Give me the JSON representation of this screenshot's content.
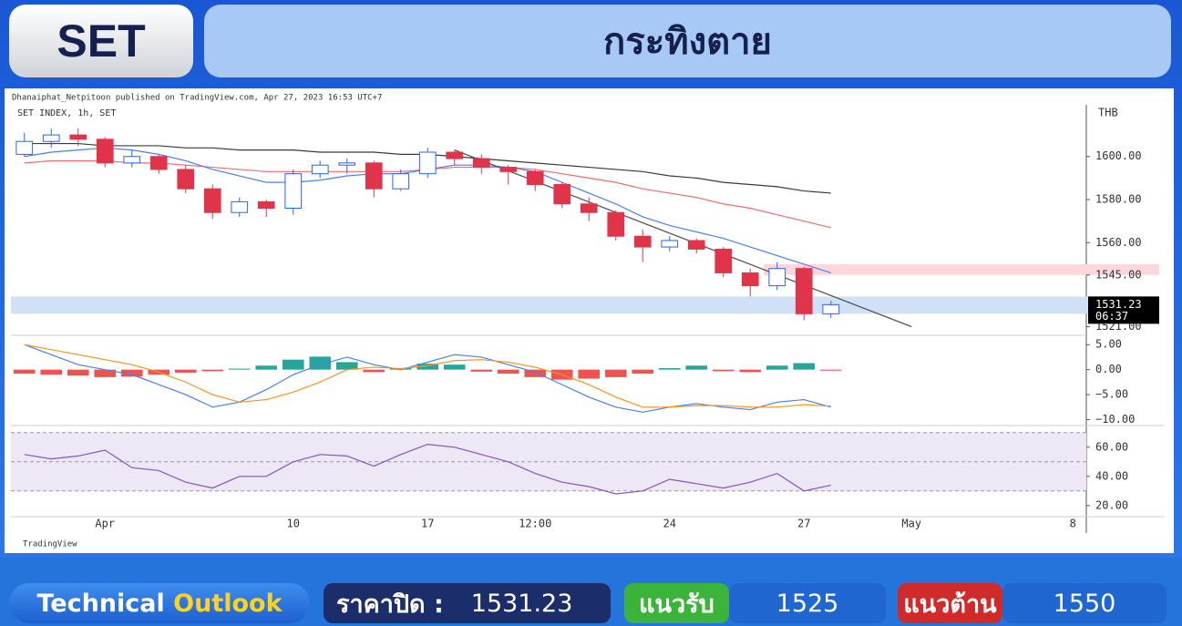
{
  "header": {
    "badge": "SET",
    "title": "กระทิงตาย"
  },
  "source": "Dhanaiphat_Netpitoon published on TradingView.com, Apr 27, 2023 16:53 UTC+7",
  "brand": "TradingView",
  "chart_data": [
    {
      "type": "candlestick",
      "title": "SET INDEX, 1h, SET",
      "currency": "THB",
      "categories": [
        null,
        null,
        null,
        "Apr",
        null,
        null,
        null,
        null,
        null,
        null,
        "10",
        null,
        null,
        null,
        null,
        "17",
        null,
        null,
        null,
        "12:00",
        null,
        null,
        null,
        null,
        "24",
        null,
        null,
        null,
        null,
        "27",
        null,
        null,
        null,
        "May",
        null,
        null,
        null,
        null,
        null,
        "8"
      ],
      "open": [
        1601,
        1607,
        1610,
        1608,
        1597,
        1600,
        1594,
        1585,
        1574,
        1579,
        1576,
        1592,
        1596,
        1597,
        1585,
        1592,
        1602,
        1599,
        1595,
        1593,
        1587,
        1578,
        1574,
        1563,
        1558,
        1561,
        1557,
        1546,
        1540,
        1548,
        1527,
        null,
        null,
        null,
        null,
        null,
        null,
        null,
        null,
        null
      ],
      "high": [
        1611,
        1613,
        1613,
        1609,
        1603,
        1601,
        1596,
        1587,
        1581,
        1580,
        1594,
        1598,
        1599,
        1598,
        1594,
        1604,
        1603,
        1601,
        1596,
        1594,
        1588,
        1581,
        1575,
        1566,
        1563,
        1562,
        1558,
        1548,
        1551,
        1549,
        1533,
        null,
        null,
        null,
        null,
        null,
        null,
        null,
        null,
        null
      ],
      "low": [
        1600,
        1604,
        1605,
        1595,
        1595,
        1592,
        1583,
        1571,
        1572,
        1572,
        1573,
        1590,
        1592,
        1581,
        1584,
        1590,
        1596,
        1592,
        1587,
        1584,
        1576,
        1570,
        1561,
        1551,
        1556,
        1555,
        1544,
        1535,
        1538,
        1524,
        1525,
        null,
        null,
        null,
        null,
        null,
        null,
        null,
        null,
        null
      ],
      "close": [
        1607,
        1610,
        1608,
        1597,
        1600,
        1594,
        1585,
        1574,
        1579,
        1576,
        1592,
        1596,
        1597,
        1585,
        1592,
        1602,
        1599,
        1595,
        1593,
        1587,
        1578,
        1574,
        1563,
        1558,
        1561,
        1557,
        1546,
        1540,
        1548,
        1527,
        1531.23,
        null,
        null,
        null,
        null,
        null,
        null,
        null,
        null,
        null
      ],
      "up_color": "#2962ff",
      "down_color": "#e0344a",
      "series": [
        {
          "color": "#3a3a3a",
          "values": [
            1606,
            1606,
            1606,
            1605,
            1605,
            1605,
            1604,
            1604,
            1603,
            1603,
            1603,
            1602,
            1602,
            1602,
            1601,
            1601,
            1600,
            1599,
            1598,
            1597,
            1596,
            1595,
            1594,
            1593,
            1591,
            1590,
            1588,
            1587,
            1586,
            1584,
            1583,
            null,
            null,
            null,
            null,
            null,
            null,
            null,
            null,
            null
          ]
        },
        {
          "color": "#f26b6b",
          "values": [
            1597,
            1598,
            1598,
            1598,
            1597,
            1597,
            1596,
            1595,
            1594,
            1593,
            1593,
            1593,
            1593,
            1593,
            1593,
            1594,
            1595,
            1595,
            1595,
            1594,
            1592,
            1590,
            1588,
            1585,
            1583,
            1581,
            1578,
            1576,
            1573,
            1570,
            1567,
            null,
            null,
            null,
            null,
            null,
            null,
            null,
            null,
            null
          ]
        },
        {
          "color": "#4a7ff0",
          "values": [
            1600,
            1602,
            1603,
            1604,
            1603,
            1601,
            1598,
            1594,
            1591,
            1588,
            1588,
            1589,
            1591,
            1592,
            1592,
            1594,
            1596,
            1596,
            1595,
            1593,
            1588,
            1583,
            1578,
            1572,
            1568,
            1565,
            1562,
            1558,
            1554,
            1550,
            1546,
            null,
            null,
            null,
            null,
            null,
            null,
            null,
            null,
            null
          ]
        }
      ],
      "zones": [
        {
          "from": 1527,
          "to": 1535,
          "color": "#cfe0f7",
          "start": 0
        },
        {
          "from": 1545,
          "to": 1550,
          "color": "#ffd6dc",
          "start": 28
        }
      ],
      "trendline": {
        "x": [
          16,
          33
        ],
        "y": [
          1603,
          1521
        ],
        "color": "#555555"
      },
      "last": {
        "value": 1531.23,
        "label": "1531.23",
        "time": "06:37"
      },
      "ylim": [
        1517,
        1624
      ],
      "yticks": [
        {
          "value": 1521,
          "label": "1521.00"
        },
        {
          "value": 1545,
          "label": "1545.00"
        },
        {
          "value": 1560,
          "label": "1560.00"
        },
        {
          "value": 1580,
          "label": "1580.00"
        },
        {
          "value": 1600,
          "label": "1600.00"
        }
      ]
    },
    {
      "type": "macd",
      "histogram": [
        -0.8,
        -1,
        -1.2,
        -1.5,
        -1.4,
        -1,
        -0.6,
        -0.3,
        0.2,
        0.8,
        2,
        2.6,
        1.5,
        -0.5,
        0.3,
        1.2,
        1,
        -0.4,
        -0.8,
        -1.5,
        -2,
        -1.8,
        -1.5,
        -0.8,
        0.3,
        0.8,
        -0.3,
        -0.5,
        0.8,
        1.3,
        -0.2
      ],
      "pos_color": "#26a69a",
      "neg_color": "#ef5350",
      "series": [
        {
          "color": "#4a7ff0",
          "values": [
            5,
            3,
            1,
            0,
            -1,
            -3,
            -5,
            -7.5,
            -6.5,
            -4,
            -1,
            1,
            2.5,
            1,
            0,
            1.5,
            3,
            2.5,
            1,
            -0.5,
            -3,
            -5.5,
            -7.5,
            -8.5,
            -7.5,
            -6.8,
            -7.5,
            -8,
            -6.5,
            -6,
            -7.5
          ]
        },
        {
          "color": "#f7931e",
          "values": [
            5,
            4,
            3,
            2,
            1,
            -0.5,
            -2.5,
            -5,
            -6.5,
            -6,
            -4.5,
            -2.5,
            0,
            0.5,
            0.2,
            0.8,
            1.8,
            2,
            1.5,
            0.5,
            -1,
            -3,
            -5.5,
            -7.5,
            -7.5,
            -7.2,
            -7.2,
            -7.5,
            -7.5,
            -7,
            -7.3
          ]
        }
      ],
      "ylim": [
        -11,
        6.5
      ],
      "yticks": [
        {
          "value": -10,
          "label": "−10.00"
        },
        {
          "value": -5,
          "label": "−5.00"
        },
        {
          "value": 0,
          "label": "0.00"
        },
        {
          "value": 5,
          "label": "5.00"
        }
      ]
    },
    {
      "type": "line",
      "series": [
        {
          "color": "#7e57c2",
          "values": [
            55,
            52,
            54,
            58,
            46,
            44,
            36,
            32,
            40,
            40,
            50,
            55,
            54,
            47,
            55,
            62,
            60,
            55,
            50,
            42,
            36,
            33,
            28,
            30,
            38,
            35,
            32,
            36,
            42,
            30,
            34
          ]
        }
      ],
      "band": [
        30,
        70
      ],
      "levels": [
        30,
        50,
        70
      ],
      "band_color": "#ede7f6",
      "ylim": [
        13,
        73
      ],
      "yticks": [
        {
          "value": 20,
          "label": "20.00"
        },
        {
          "value": 40,
          "label": "40.00"
        },
        {
          "value": 60,
          "label": "60.00"
        }
      ]
    }
  ],
  "footer": {
    "outlook_1": "Technical",
    "outlook_2": "Outlook",
    "close_label": "ราคาปิด :",
    "close": 1531.23,
    "support_label": "แนวรับ",
    "support": 1525,
    "resistance_label": "แนวต้าน",
    "resistance": 1550
  }
}
